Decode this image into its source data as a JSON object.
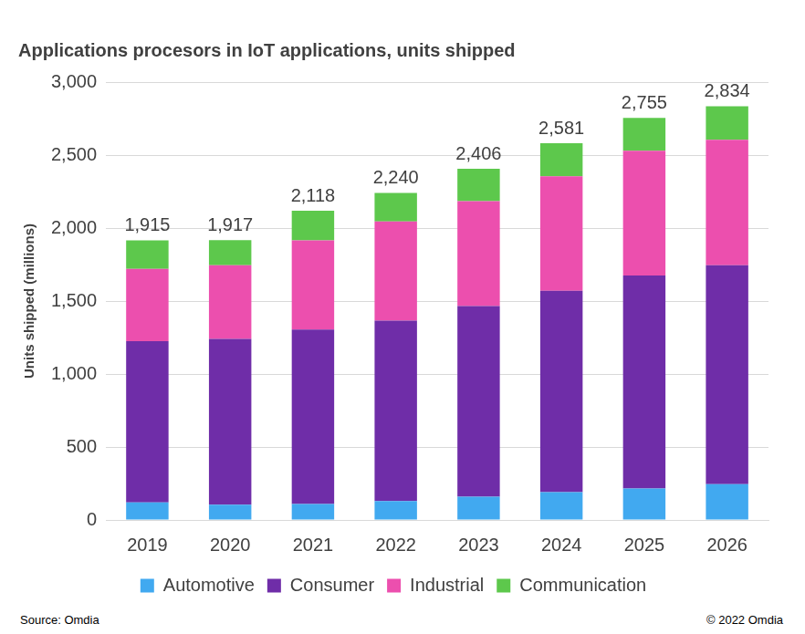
{
  "chart_data": {
    "type": "bar",
    "title": "Applications procesors in IoT applications, units shipped",
    "y_label": "Units shipped (millions)",
    "categories": [
      "2019",
      "2020",
      "2021",
      "2022",
      "2023",
      "2024",
      "2025",
      "2026"
    ],
    "series": [
      {
        "name": "Automotive",
        "color": "#41A9F0",
        "values": [
          120,
          105,
          110,
          130,
          160,
          190,
          215,
          245
        ]
      },
      {
        "name": "Consumer",
        "color": "#6F2DA8",
        "values": [
          1105,
          1135,
          1195,
          1235,
          1305,
          1380,
          1460,
          1500
        ]
      },
      {
        "name": "Industrial",
        "color": "#EC4FAE",
        "values": [
          495,
          505,
          610,
          680,
          720,
          785,
          855,
          860
        ]
      },
      {
        "name": "Communication",
        "color": "#5DC84C",
        "values": [
          195,
          172,
          203,
          195,
          221,
          226,
          225,
          229
        ]
      }
    ],
    "totals": [
      1915,
      1917,
      2118,
      2240,
      2406,
      2581,
      2755,
      2834
    ],
    "total_labels": [
      "1,915",
      "1,917",
      "2,118",
      "2,240",
      "2,406",
      "2,581",
      "2,755",
      "2,834"
    ],
    "ylim": [
      0,
      3000
    ],
    "yticks": [
      0,
      500,
      {
        "value": 1000,
        "label": "1,000"
      },
      {
        "value": 1500,
        "label": "1,500"
      },
      {
        "value": 2000,
        "label": "2,000"
      },
      {
        "value": 2500,
        "label": "2,500"
      },
      {
        "value": 3000,
        "label": "3,000"
      }
    ],
    "stacked": true,
    "grid": true,
    "legend": "bottom",
    "source": "Source: Omdia",
    "copyright": "© 2022 Omdia"
  }
}
